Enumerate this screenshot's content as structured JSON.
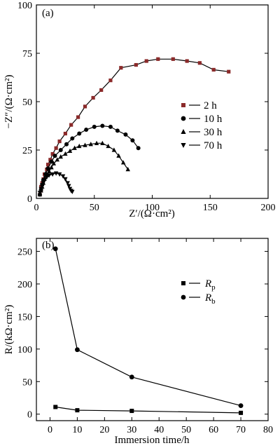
{
  "chart_data": [
    {
      "type": "scatter",
      "panel_label": "(a)",
      "xlabel": "Z′/(Ω·cm²)",
      "ylabel": "−Z″/(Ω·cm²)",
      "xlim": [
        0,
        200
      ],
      "ylim": [
        0,
        100
      ],
      "xticks": [
        0,
        50,
        100,
        150,
        200
      ],
      "yticks": [
        0,
        25,
        50,
        75,
        100
      ],
      "legend_position": "right",
      "series": [
        {
          "name": "2 h",
          "marker": "square",
          "color": "#8b2a2a",
          "points": [
            [
              3,
              2
            ],
            [
              4,
              4
            ],
            [
              4,
              6
            ],
            [
              5,
              8
            ],
            [
              6,
              10
            ],
            [
              7,
              12.5
            ],
            [
              9,
              15
            ],
            [
              10,
              17.5
            ],
            [
              12,
              20
            ],
            [
              14,
              23
            ],
            [
              17,
              26
            ],
            [
              20,
              29.5
            ],
            [
              25,
              33.5
            ],
            [
              30,
              38
            ],
            [
              36,
              42
            ],
            [
              42,
              47.5
            ],
            [
              49,
              52
            ],
            [
              56,
              56
            ],
            [
              64,
              61
            ],
            [
              73,
              67.5
            ],
            [
              86,
              69
            ],
            [
              95,
              71
            ],
            [
              105,
              72
            ],
            [
              118,
              72
            ],
            [
              130,
              71
            ],
            [
              141,
              70
            ],
            [
              153,
              66.5
            ],
            [
              166,
              65.5
            ]
          ]
        },
        {
          "name": "10 h",
          "marker": "circle",
          "color": "#000000",
          "points": [
            [
              3,
              2
            ],
            [
              4,
              4.5
            ],
            [
              5,
              7
            ],
            [
              6,
              9.5
            ],
            [
              8,
              12.5
            ],
            [
              10,
              15.5
            ],
            [
              13,
              19
            ],
            [
              16,
              22
            ],
            [
              21,
              25
            ],
            [
              26,
              28
            ],
            [
              31,
              31
            ],
            [
              37,
              33.5
            ],
            [
              43,
              35.5
            ],
            [
              50,
              37
            ],
            [
              57,
              37.5
            ],
            [
              64,
              37
            ],
            [
              70,
              35
            ],
            [
              77,
              33
            ],
            [
              83,
              30
            ],
            [
              88,
              26
            ]
          ]
        },
        {
          "name": "30 h",
          "marker": "triangle-up",
          "color": "#000000",
          "points": [
            [
              3,
              2
            ],
            [
              4,
              4
            ],
            [
              5,
              6
            ],
            [
              6,
              8
            ],
            [
              7,
              10
            ],
            [
              9,
              12
            ],
            [
              11,
              14
            ],
            [
              13,
              16
            ],
            [
              15,
              18
            ],
            [
              18,
              20
            ],
            [
              21,
              21.5
            ],
            [
              25,
              23
            ],
            [
              29,
              24.5
            ],
            [
              33,
              26
            ],
            [
              37,
              27
            ],
            [
              42,
              27.5
            ],
            [
              47,
              28
            ],
            [
              52,
              28.5
            ],
            [
              57,
              28.5
            ],
            [
              62,
              27
            ],
            [
              67,
              25
            ],
            [
              71,
              22
            ],
            [
              75,
              18.5
            ],
            [
              79,
              15
            ]
          ]
        },
        {
          "name": "70 h",
          "marker": "triangle-down",
          "color": "#000000",
          "points": [
            [
              3,
              3
            ],
            [
              4,
              5
            ],
            [
              5,
              7
            ],
            [
              6,
              8
            ],
            [
              7,
              9.5
            ],
            [
              9,
              11
            ],
            [
              11,
              12
            ],
            [
              14,
              12.5
            ],
            [
              17,
              13
            ],
            [
              20,
              12.5
            ],
            [
              23,
              11.5
            ],
            [
              25,
              10
            ],
            [
              27,
              8
            ],
            [
              28,
              6.5
            ],
            [
              29,
              5
            ],
            [
              30,
              4
            ],
            [
              31,
              3.5
            ]
          ]
        }
      ]
    },
    {
      "type": "line",
      "panel_label": "(b)",
      "xlabel": "Immersion time/h",
      "ylabel": "R/(kΩ·cm²)",
      "xlim": [
        -5,
        80
      ],
      "ylim": [
        -10,
        270
      ],
      "xticks": [
        0,
        10,
        20,
        30,
        40,
        50,
        60,
        70,
        80
      ],
      "yticks": [
        0,
        50,
        100,
        150,
        200,
        250
      ],
      "legend_position": "right",
      "series": [
        {
          "name": "R_p",
          "label_main": "R",
          "label_sub": "p",
          "marker": "square",
          "color": "#000000",
          "x": [
            2,
            10,
            30,
            70
          ],
          "y": [
            11,
            6,
            5,
            2
          ]
        },
        {
          "name": "R_b",
          "label_main": "R",
          "label_sub": "b",
          "marker": "circle",
          "color": "#000000",
          "x": [
            2,
            10,
            30,
            70
          ],
          "y": [
            254,
            99,
            57,
            13
          ]
        }
      ]
    }
  ]
}
